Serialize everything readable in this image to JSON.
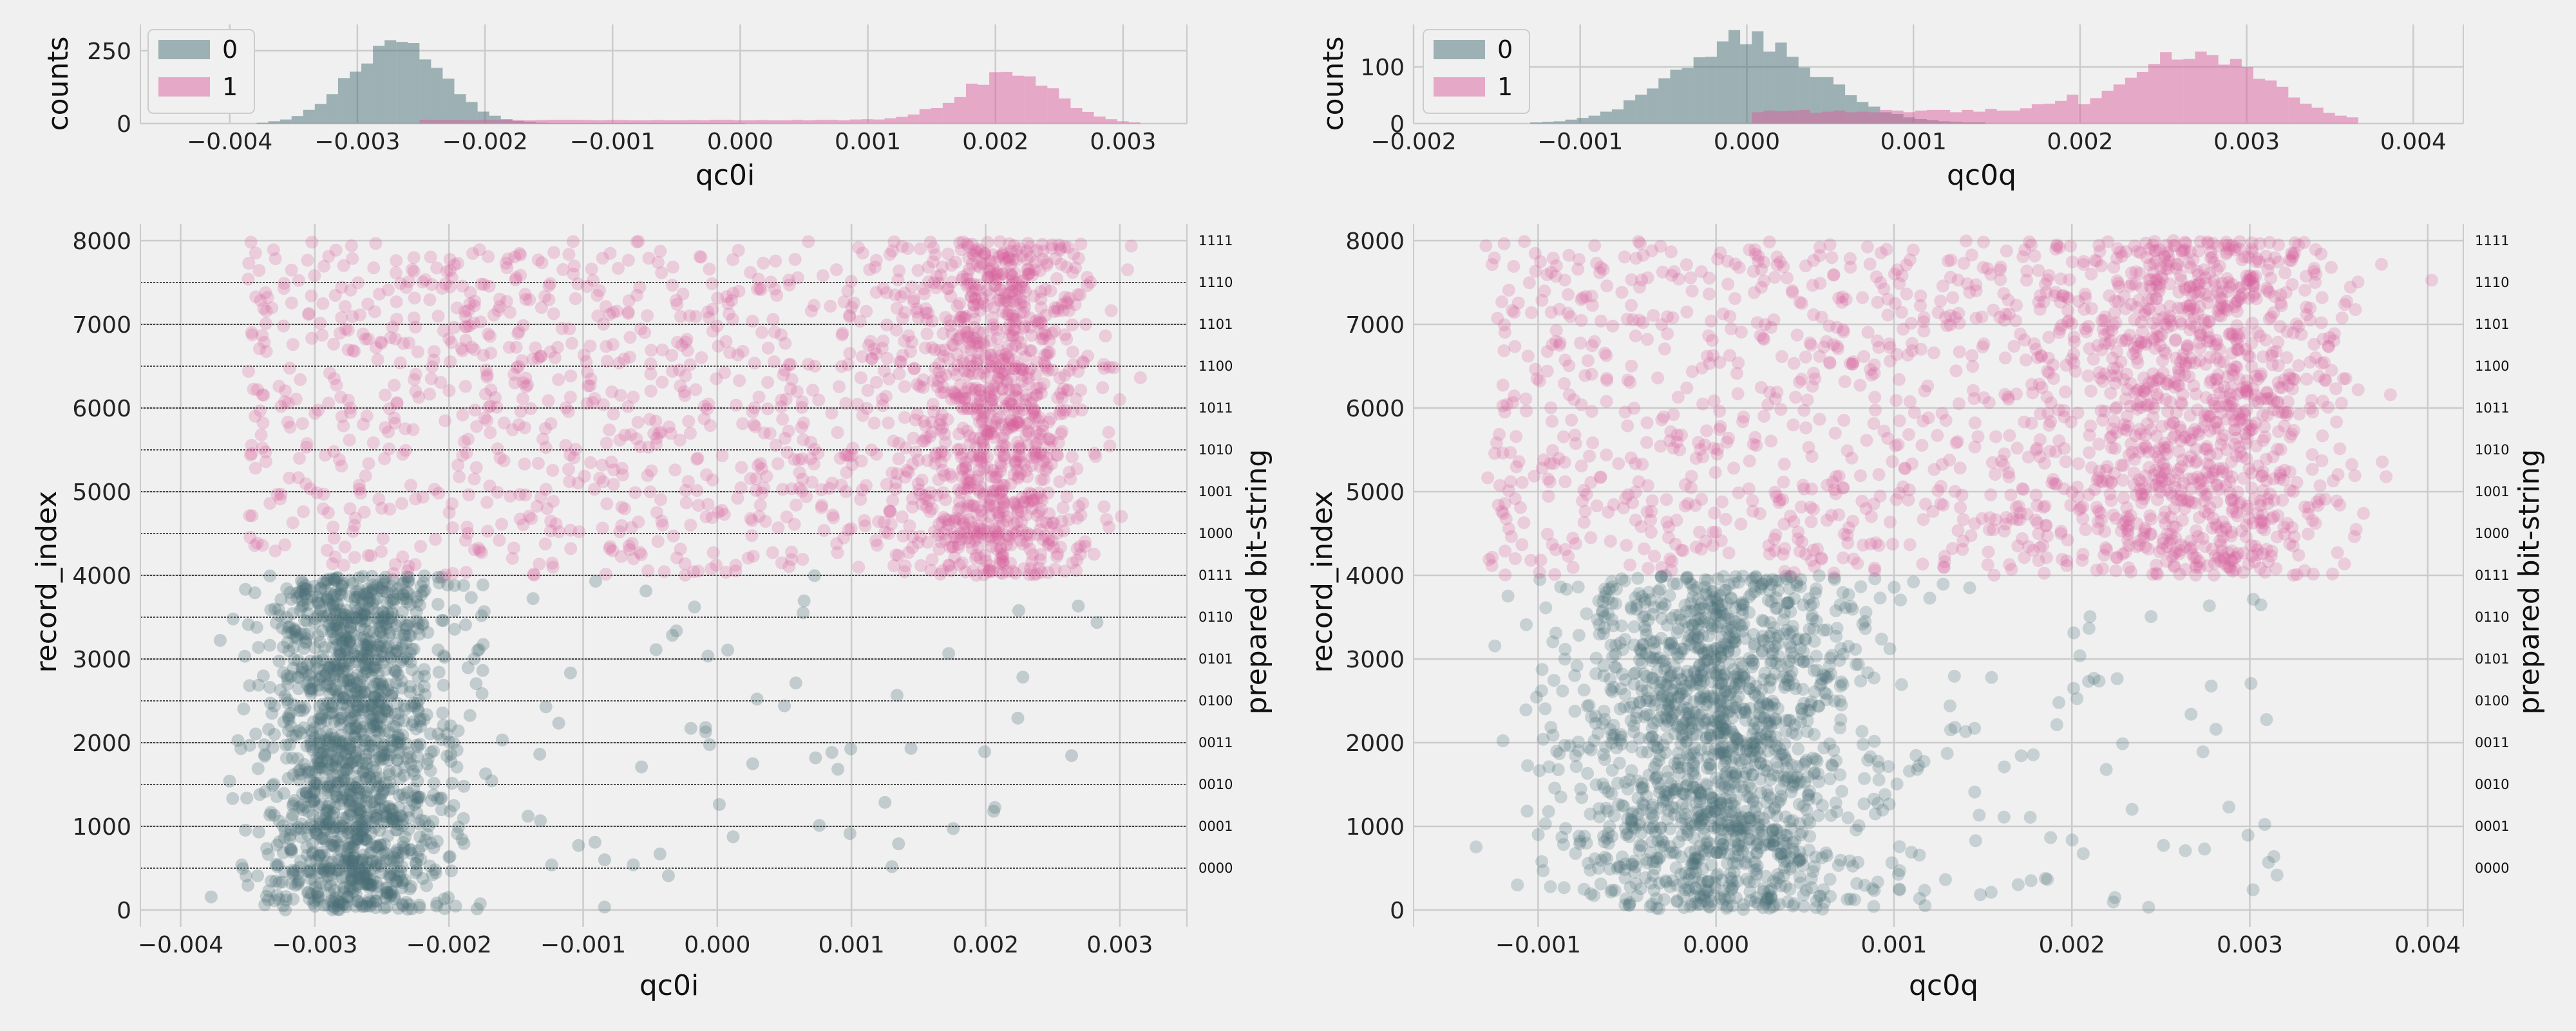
{
  "colors": {
    "background": "#f0f0f0",
    "class0": "#4a6f78",
    "class1": "#d9609c",
    "grid": "#cbcbcb",
    "axis": "#cbcbcb",
    "threshold": "#111111"
  },
  "chart_data": [
    {
      "id": "hist_i",
      "type": "histogram",
      "xlabel": "qc0i",
      "ylabel": "counts",
      "xlim": [
        -0.0047,
        0.0035
      ],
      "ylim": [
        0,
        340
      ],
      "xticks": [
        -0.004,
        -0.003,
        -0.002,
        -0.001,
        0.0,
        0.001,
        0.002,
        0.003
      ],
      "xticklabels": [
        "−0.004",
        "−0.003",
        "−0.002",
        "−0.001",
        "0.000",
        "0.001",
        "0.002",
        "0.003"
      ],
      "yticks": [
        0,
        250
      ],
      "legend": {
        "placement": "top-left",
        "entries": [
          "0",
          "1"
        ]
      },
      "grid": true,
      "series": [
        {
          "name": "0",
          "center": -0.0027,
          "sd": 0.00035,
          "peak": 285,
          "tail_level": 2,
          "tail_range": [
            -0.002,
            0.0
          ],
          "range": [
            -0.0038,
            0.0002
          ],
          "color": "#4a6f78",
          "opacity": 0.5
        },
        {
          "name": "1",
          "center": 0.0021,
          "sd": 0.00036,
          "peak": 175,
          "tail_level": 12,
          "tail_range": [
            -0.0025,
            0.0015
          ],
          "range": [
            -0.0028,
            0.0031
          ],
          "color": "#d9609c",
          "opacity": 0.5
        }
      ]
    },
    {
      "id": "hist_q",
      "type": "histogram",
      "xlabel": "qc0q",
      "ylabel": "counts",
      "xlim": [
        -0.002,
        0.0043
      ],
      "ylim": [
        0,
        175
      ],
      "xticks": [
        -0.002,
        -0.001,
        0.0,
        0.001,
        0.002,
        0.003,
        0.004
      ],
      "xticklabels": [
        "−0.002",
        "−0.001",
        "0.000",
        "0.001",
        "0.002",
        "0.003",
        "0.004"
      ],
      "yticks": [
        0,
        100
      ],
      "legend": {
        "placement": "top-left",
        "entries": [
          "0",
          "1"
        ]
      },
      "grid": true,
      "series": [
        {
          "name": "0",
          "center": 0.0,
          "sd": 0.00042,
          "peak": 150,
          "tail_level": 1,
          "tail_range": [
            0.0006,
            0.0016
          ],
          "range": [
            -0.0013,
            0.0014
          ],
          "color": "#4a6f78",
          "opacity": 0.5
        },
        {
          "name": "1",
          "center": 0.0027,
          "sd": 0.00042,
          "peak": 125,
          "tail_level": 22,
          "tail_range": [
            0.0,
            0.002
          ],
          "range": [
            -0.0006,
            0.0037
          ],
          "color": "#d9609c",
          "opacity": 0.5
        }
      ]
    },
    {
      "id": "scatter_i",
      "type": "scatter",
      "xlabel": "qc0i",
      "ylabel": "record_index",
      "ylabel_right": "prepared bit-string",
      "xlim": [
        -0.0043,
        0.0035
      ],
      "ylim": [
        -200,
        8200
      ],
      "xticks": [
        -0.004,
        -0.003,
        -0.002,
        -0.001,
        0.0,
        0.001,
        0.002,
        0.003
      ],
      "xticklabels": [
        "−0.004",
        "−0.003",
        "−0.002",
        "−0.001",
        "0.000",
        "0.001",
        "0.002",
        "0.003"
      ],
      "yticks": [
        0,
        1000,
        2000,
        3000,
        4000,
        5000,
        6000,
        7000,
        8000
      ],
      "grid": true,
      "group_boundaries": [
        500,
        1000,
        1500,
        2000,
        2500,
        3000,
        3500,
        4000,
        4500,
        5000,
        5500,
        6000,
        6500,
        7000,
        7500
      ],
      "bitstring_labels": [
        {
          "label": "0000",
          "y": 500
        },
        {
          "label": "0001",
          "y": 1000
        },
        {
          "label": "0010",
          "y": 1500
        },
        {
          "label": "0011",
          "y": 2000
        },
        {
          "label": "0100",
          "y": 2500
        },
        {
          "label": "0101",
          "y": 3000
        },
        {
          "label": "0110",
          "y": 3500
        },
        {
          "label": "0111",
          "y": 4000
        },
        {
          "label": "1000",
          "y": 4500
        },
        {
          "label": "1001",
          "y": 5000
        },
        {
          "label": "1010",
          "y": 5500
        },
        {
          "label": "1011",
          "y": 6000
        },
        {
          "label": "1100",
          "y": 6500
        },
        {
          "label": "1101",
          "y": 7000
        },
        {
          "label": "1110",
          "y": 7500
        },
        {
          "label": "1111",
          "y": 8000
        }
      ],
      "series": [
        {
          "name": "0",
          "index_range": [
            0,
            4000
          ],
          "center": -0.0027,
          "sd": 0.00035,
          "tail_fraction": 0.04,
          "tail_range": [
            -0.002,
            0.003
          ],
          "count": 1600,
          "color": "#4a6f78",
          "opacity": 0.28
        },
        {
          "name": "1",
          "index_range": [
            4000,
            8000
          ],
          "center": 0.0021,
          "sd": 0.00036,
          "tail_fraction": 0.45,
          "tail_range": [
            -0.0035,
            0.0015
          ],
          "count": 1900,
          "color": "#d9609c",
          "opacity": 0.25
        }
      ]
    },
    {
      "id": "scatter_q",
      "type": "scatter",
      "xlabel": "qc0q",
      "ylabel": "record_index",
      "ylabel_right": "prepared bit-string",
      "xlim": [
        -0.0017,
        0.0042
      ],
      "ylim": [
        -200,
        8200
      ],
      "xticks": [
        -0.001,
        0.0,
        0.001,
        0.002,
        0.003,
        0.004
      ],
      "xticklabels": [
        "−0.001",
        "0.000",
        "0.001",
        "0.002",
        "0.003",
        "0.004"
      ],
      "yticks": [
        0,
        1000,
        2000,
        3000,
        4000,
        5000,
        6000,
        7000,
        8000
      ],
      "grid": true,
      "group_boundaries": [],
      "bitstring_labels": [
        {
          "label": "0000",
          "y": 500
        },
        {
          "label": "0001",
          "y": 1000
        },
        {
          "label": "0010",
          "y": 1500
        },
        {
          "label": "0011",
          "y": 2000
        },
        {
          "label": "0100",
          "y": 2500
        },
        {
          "label": "0101",
          "y": 3000
        },
        {
          "label": "0110",
          "y": 3500
        },
        {
          "label": "0111",
          "y": 4000
        },
        {
          "label": "1000",
          "y": 4500
        },
        {
          "label": "1001",
          "y": 5000
        },
        {
          "label": "1010",
          "y": 5500
        },
        {
          "label": "1011",
          "y": 6000
        },
        {
          "label": "1100",
          "y": 6500
        },
        {
          "label": "1101",
          "y": 7000
        },
        {
          "label": "1110",
          "y": 7500
        },
        {
          "label": "1111",
          "y": 8000
        }
      ],
      "series": [
        {
          "name": "0",
          "index_range": [
            0,
            4000
          ],
          "center": 0.0,
          "sd": 0.00042,
          "tail_fraction": 0.05,
          "tail_range": [
            0.0006,
            0.0032
          ],
          "count": 1700,
          "color": "#4a6f78",
          "opacity": 0.25
        },
        {
          "name": "1",
          "index_range": [
            4000,
            8000
          ],
          "center": 0.0027,
          "sd": 0.00042,
          "tail_fraction": 0.4,
          "tail_range": [
            -0.0013,
            0.002
          ],
          "count": 1900,
          "color": "#d9609c",
          "opacity": 0.25
        }
      ]
    }
  ]
}
